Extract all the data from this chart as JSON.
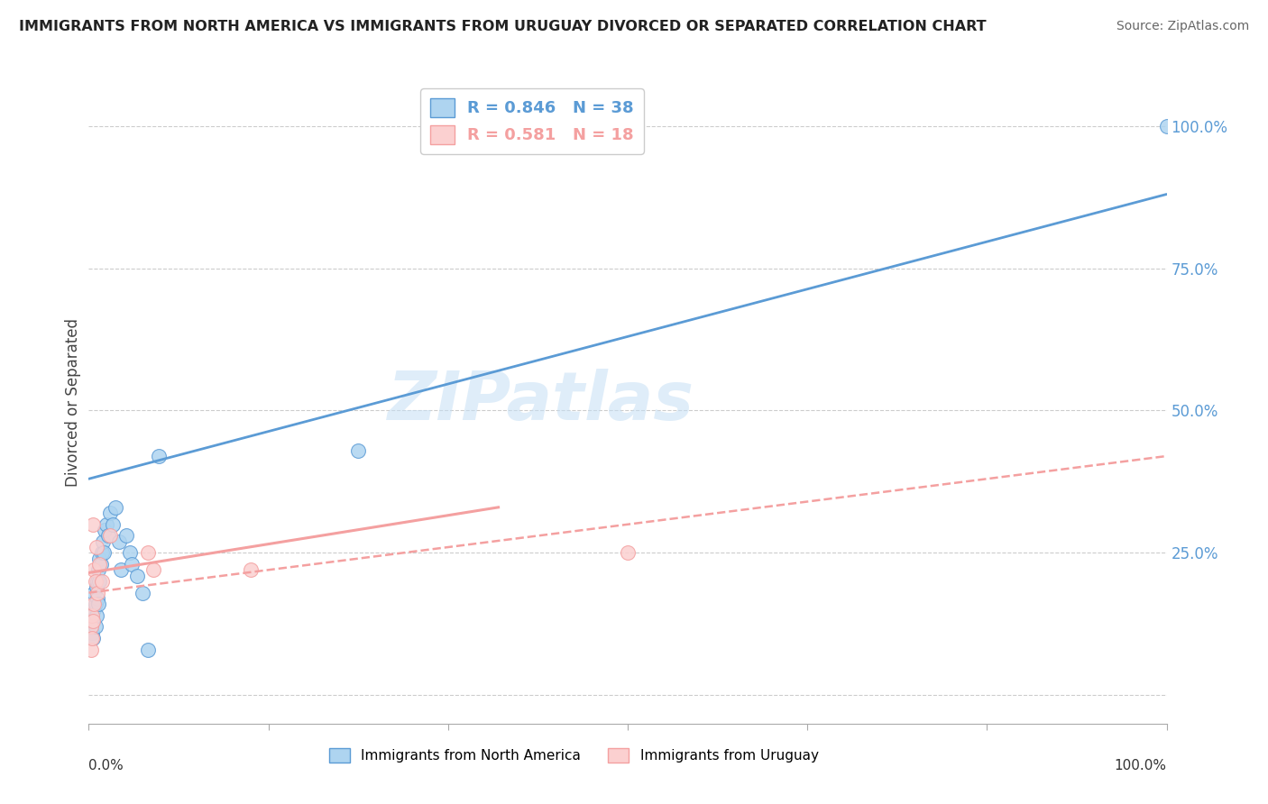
{
  "title": "IMMIGRANTS FROM NORTH AMERICA VS IMMIGRANTS FROM URUGUAY DIVORCED OR SEPARATED CORRELATION CHART",
  "source": "Source: ZipAtlas.com",
  "ylabel": "Divorced or Separated",
  "legend_entries": [
    {
      "label": "Immigrants from North America",
      "R": "0.846",
      "N": "38",
      "color": "#5b9bd5"
    },
    {
      "label": "Immigrants from Uruguay",
      "R": "0.581",
      "N": "18",
      "color": "#f4a0a0"
    }
  ],
  "blue_scatter": [
    [
      0.002,
      0.12
    ],
    [
      0.003,
      0.14
    ],
    [
      0.003,
      0.11
    ],
    [
      0.004,
      0.1
    ],
    [
      0.004,
      0.13
    ],
    [
      0.005,
      0.15
    ],
    [
      0.005,
      0.18
    ],
    [
      0.006,
      0.12
    ],
    [
      0.006,
      0.16
    ],
    [
      0.007,
      0.19
    ],
    [
      0.007,
      0.14
    ],
    [
      0.008,
      0.17
    ],
    [
      0.008,
      0.2
    ],
    [
      0.009,
      0.22
    ],
    [
      0.009,
      0.16
    ],
    [
      0.01,
      0.24
    ],
    [
      0.01,
      0.2
    ],
    [
      0.011,
      0.23
    ],
    [
      0.012,
      0.25
    ],
    [
      0.013,
      0.27
    ],
    [
      0.014,
      0.25
    ],
    [
      0.015,
      0.29
    ],
    [
      0.016,
      0.3
    ],
    [
      0.018,
      0.28
    ],
    [
      0.02,
      0.32
    ],
    [
      0.022,
      0.3
    ],
    [
      0.025,
      0.33
    ],
    [
      0.028,
      0.27
    ],
    [
      0.03,
      0.22
    ],
    [
      0.035,
      0.28
    ],
    [
      0.038,
      0.25
    ],
    [
      0.04,
      0.23
    ],
    [
      0.045,
      0.21
    ],
    [
      0.05,
      0.18
    ],
    [
      0.055,
      0.08
    ],
    [
      0.065,
      0.42
    ],
    [
      0.25,
      0.43
    ],
    [
      1.0,
      1.0
    ]
  ],
  "pink_scatter": [
    [
      0.002,
      0.08
    ],
    [
      0.002,
      0.12
    ],
    [
      0.003,
      0.1
    ],
    [
      0.003,
      0.14
    ],
    [
      0.004,
      0.13
    ],
    [
      0.004,
      0.3
    ],
    [
      0.005,
      0.16
    ],
    [
      0.005,
      0.22
    ],
    [
      0.006,
      0.2
    ],
    [
      0.007,
      0.26
    ],
    [
      0.008,
      0.18
    ],
    [
      0.01,
      0.23
    ],
    [
      0.012,
      0.2
    ],
    [
      0.02,
      0.28
    ],
    [
      0.055,
      0.25
    ],
    [
      0.06,
      0.22
    ],
    [
      0.15,
      0.22
    ],
    [
      0.5,
      0.25
    ]
  ],
  "blue_line": [
    0.0,
    0.38,
    1.0,
    0.88
  ],
  "pink_solid_line": [
    0.0,
    0.215,
    0.38,
    0.33
  ],
  "pink_dashed_line": [
    0.0,
    0.18,
    1.0,
    0.42
  ],
  "ytick_positions": [
    0.0,
    0.25,
    0.5,
    0.75,
    1.0
  ],
  "ytick_labels": [
    "",
    "25.0%",
    "50.0%",
    "75.0%",
    "100.0%"
  ],
  "background_color": "#ffffff",
  "grid_color": "#cccccc",
  "blue_color": "#5b9bd5",
  "pink_color": "#f4a0a0",
  "blue_fill_color": "#aed4f0",
  "pink_fill_color": "#fbd0d0",
  "watermark_text": "ZIPatlas",
  "xlim": [
    0.0,
    1.0
  ],
  "ylim": [
    -0.05,
    1.08
  ]
}
